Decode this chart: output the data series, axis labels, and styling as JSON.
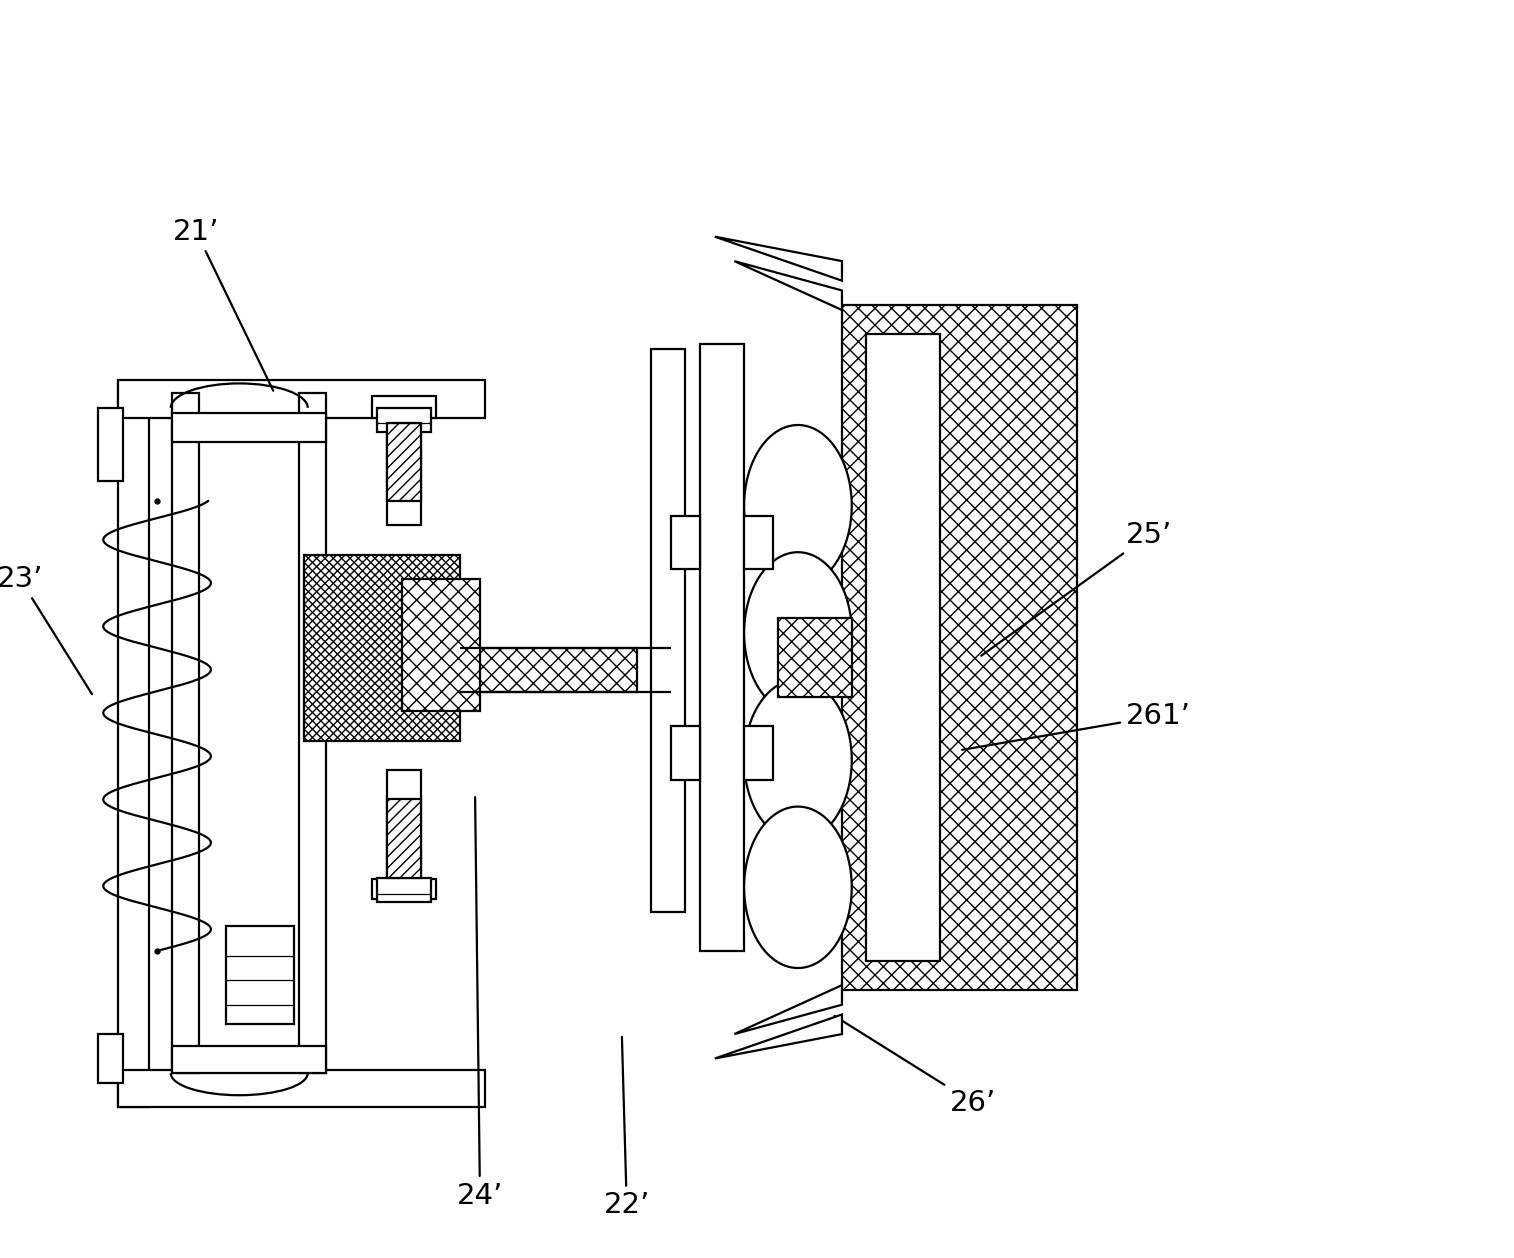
{
  "bg_color": "#ffffff",
  "lw": 1.6,
  "lw_thin": 0.9,
  "label_fontsize": 21,
  "figsize": [
    15.14,
    12.58
  ],
  "dpi": 100
}
